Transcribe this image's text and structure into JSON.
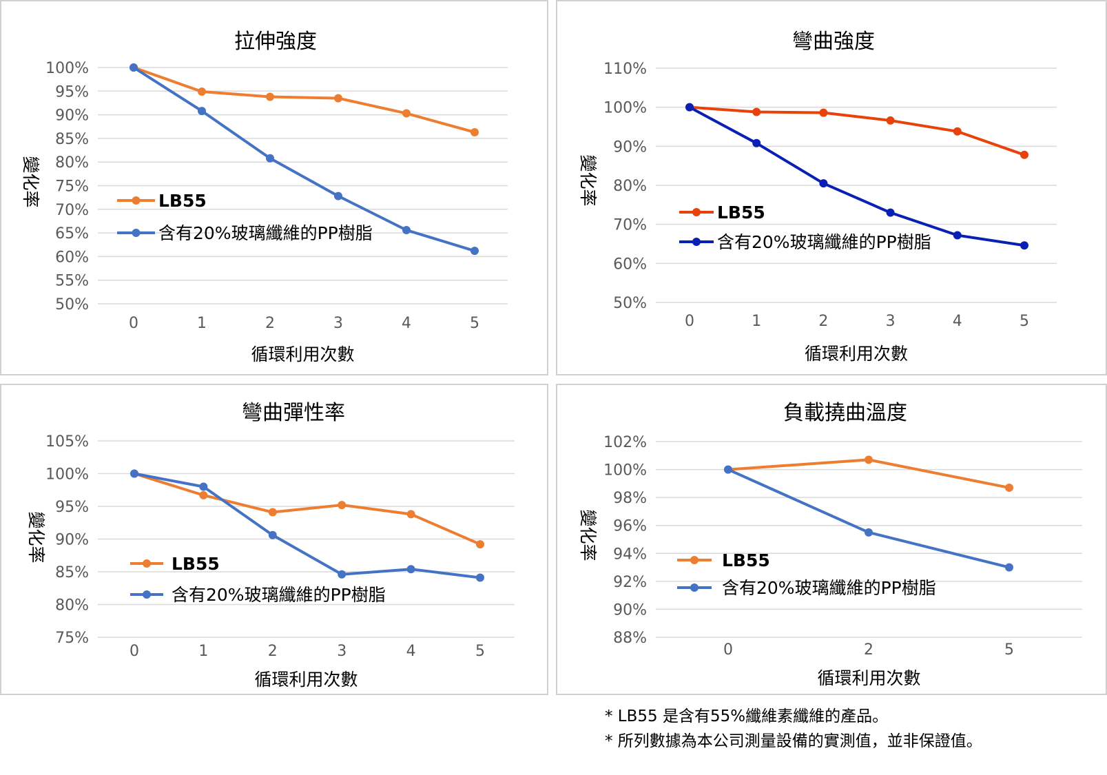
{
  "chart_data": [
    {
      "type": "line",
      "title": "拉伸強度",
      "xlabel": "循環利用次數",
      "ylabel": "變化率",
      "x": [
        "0",
        "1",
        "2",
        "3",
        "4",
        "5"
      ],
      "ylim": [
        50,
        100
      ],
      "yticks": [
        "100%",
        "95%",
        "90%",
        "85%",
        "80%",
        "75%",
        "70%",
        "65%",
        "60%",
        "55%",
        "50%"
      ],
      "grid": true,
      "legend_position": "left-middle",
      "series": [
        {
          "name": "LB55",
          "color": "#ED7D31",
          "values": [
            100,
            94.9,
            93.8,
            93.5,
            90.3,
            86.3
          ]
        },
        {
          "name": "含有20%玻璃纖維的PP樹脂",
          "color": "#4472C4",
          "values": [
            100,
            90.8,
            80.8,
            72.8,
            65.6,
            61.2
          ]
        }
      ]
    },
    {
      "type": "line",
      "title": "彎曲強度",
      "xlabel": "循環利用次數",
      "ylabel": "變化率",
      "x": [
        "0",
        "1",
        "2",
        "3",
        "4",
        "5"
      ],
      "ylim": [
        50,
        110
      ],
      "yticks": [
        "110%",
        "100%",
        "90%",
        "80%",
        "70%",
        "60%",
        "50%"
      ],
      "grid": true,
      "legend_position": "left-middle",
      "series": [
        {
          "name": "LB55",
          "color": "#E8410A",
          "values": [
            100,
            98.8,
            98.6,
            96.6,
            93.8,
            87.8
          ]
        },
        {
          "name": "含有20%玻璃纖維的PP樹脂",
          "color": "#0A1FB4",
          "values": [
            100,
            90.8,
            80.5,
            73.0,
            67.2,
            64.6
          ]
        }
      ]
    },
    {
      "type": "line",
      "title": "彎曲彈性率",
      "xlabel": "循環利用次數",
      "ylabel": "變化率",
      "x": [
        "0",
        "1",
        "2",
        "3",
        "4",
        "5"
      ],
      "ylim": [
        75,
        105
      ],
      "yticks": [
        "105%",
        "100%",
        "95%",
        "90%",
        "85%",
        "80%",
        "75%"
      ],
      "grid": true,
      "legend_position": "left-middle",
      "series": [
        {
          "name": "LB55",
          "color": "#ED7D31",
          "values": [
            100,
            96.7,
            94.1,
            95.2,
            93.8,
            89.2
          ]
        },
        {
          "name": "含有20%玻璃纖維的PP樹脂",
          "color": "#4472C4",
          "values": [
            100,
            98.0,
            90.6,
            84.6,
            85.4,
            84.1
          ]
        }
      ]
    },
    {
      "type": "line",
      "title": "負載撓曲溫度",
      "xlabel": "循環利用次數",
      "ylabel": "變化率",
      "x": [
        "0",
        "2",
        "5"
      ],
      "ylim": [
        88,
        102
      ],
      "yticks": [
        "102%",
        "100%",
        "98%",
        "96%",
        "94%",
        "92%",
        "90%",
        "88%"
      ],
      "grid": true,
      "legend_position": "left-middle",
      "series": [
        {
          "name": "LB55",
          "color": "#ED7D31",
          "values": [
            100,
            100.7,
            98.7
          ]
        },
        {
          "name": "含有20%玻璃纖維的PP樹脂",
          "color": "#4472C4",
          "values": [
            100,
            95.5,
            93.0
          ]
        }
      ]
    }
  ],
  "notes": [
    "* LB55 是含有55%纖維素纖維的產品。",
    "* 所列數據為本公司測量設備的實測值，並非保證值。"
  ]
}
